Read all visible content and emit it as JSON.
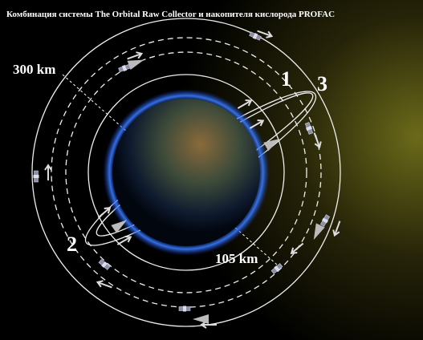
{
  "title": "Комбинация системы The Orbital Raw Collector и накопителя кислорода PROFAC",
  "labels": {
    "altitude_outer": "300 km",
    "altitude_inner": "105 km",
    "point_1": "1",
    "point_2": "2",
    "point_3": "3"
  }
}
